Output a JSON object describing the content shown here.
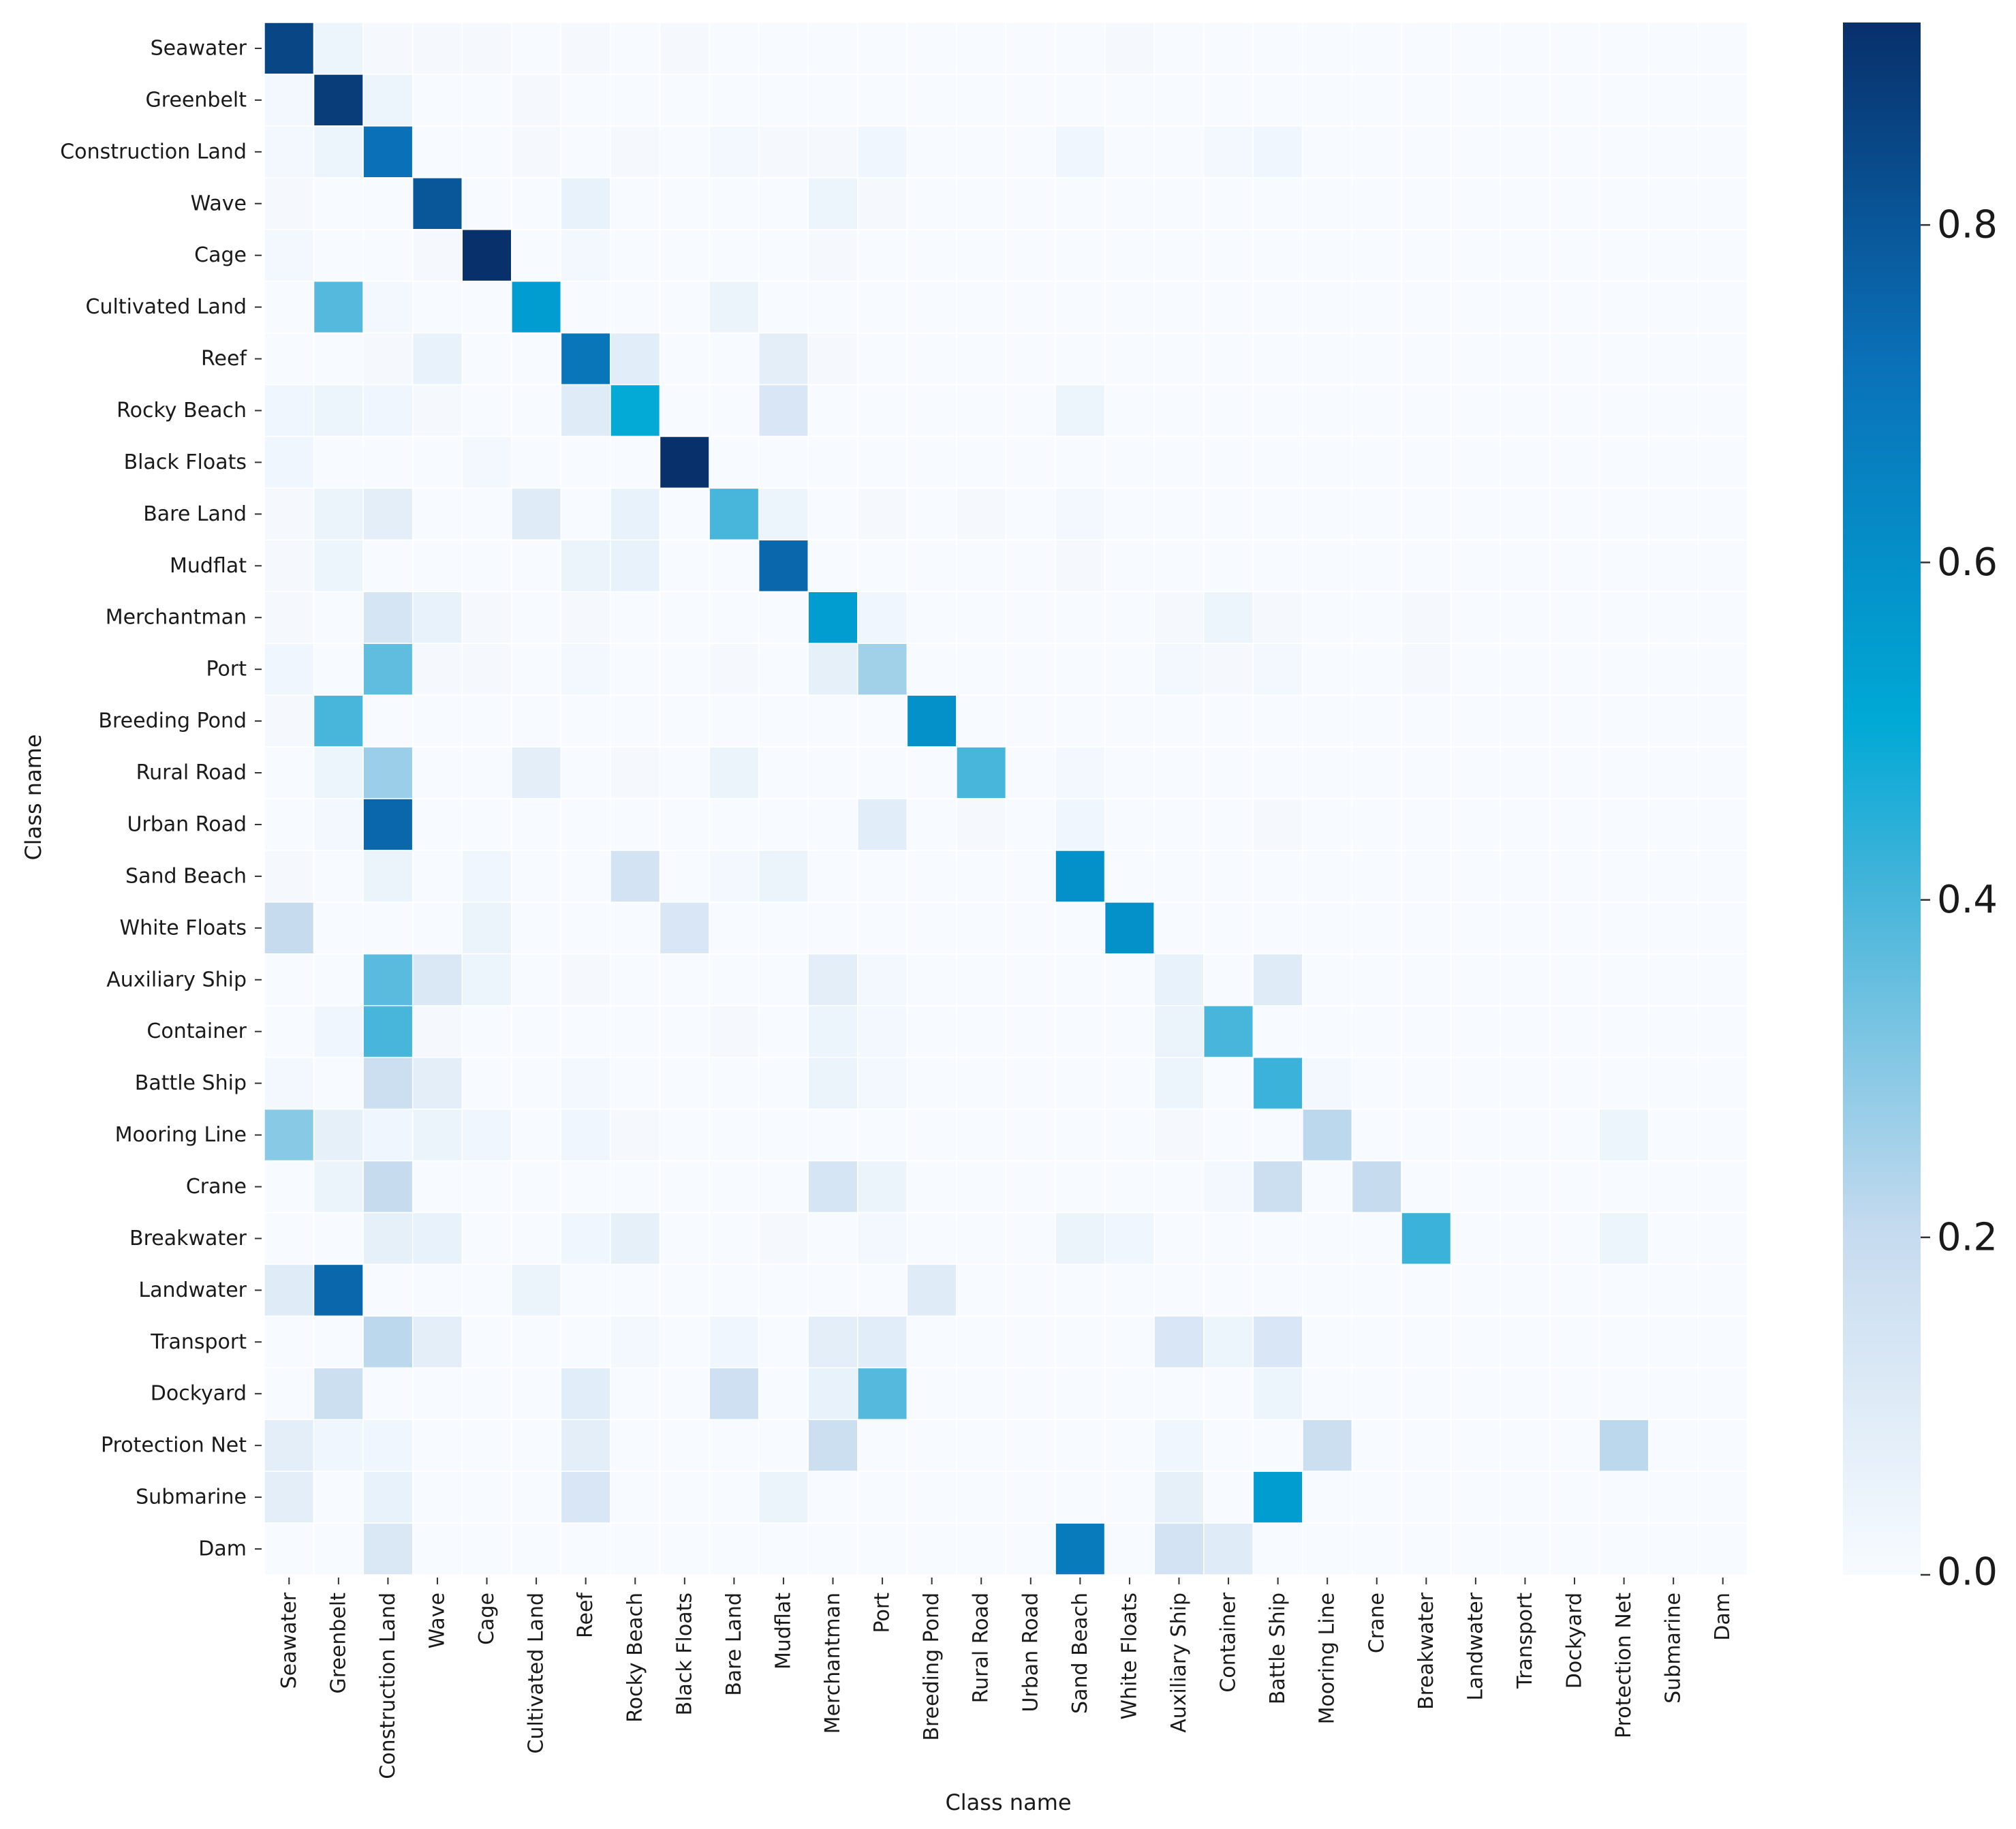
{
  "chart_data": {
    "type": "heatmap",
    "title": "",
    "xlabel": "Class name",
    "ylabel": "Class name",
    "row_labels": [
      "Seawater",
      "Greenbelt",
      "Construction Land",
      "Wave",
      "Cage",
      "Cultivated Land",
      "Reef",
      "Rocky Beach",
      "Black Floats",
      "Bare Land",
      "Mudflat",
      "Merchantman",
      "Port",
      "Breeding Pond",
      "Rural Road",
      "Urban Road",
      "Sand Beach",
      "White Floats",
      "Auxiliary Ship",
      "Container",
      "Battle Ship",
      "Mooring Line",
      "Crane",
      "Breakwater",
      "Landwater",
      "Transport",
      "Dockyard",
      "Protection Net",
      "Submarine",
      "Dam"
    ],
    "col_labels": [
      "Seawater",
      "Greenbelt",
      "Construction Land",
      "Wave",
      "Cage",
      "Cultivated Land",
      "Reef",
      "Rocky Beach",
      "Black Floats",
      "Bare Land",
      "Mudflat",
      "Merchantman",
      "Port",
      "Breeding Pond",
      "Rural Road",
      "Urban Road",
      "Sand Beach",
      "White Floats",
      "Auxiliary Ship",
      "Container",
      "Battle Ship",
      "Mooring Line",
      "Crane",
      "Breakwater",
      "Landwater",
      "Transport",
      "Dockyard",
      "Protection Net",
      "Submarine",
      "Dam"
    ],
    "cells": [
      [
        0,
        0,
        0.85
      ],
      [
        0,
        1,
        0.04
      ],
      [
        0,
        2,
        0.01
      ],
      [
        0,
        3,
        0.01
      ],
      [
        0,
        4,
        0.01
      ],
      [
        0,
        6,
        0.01
      ],
      [
        0,
        8,
        0.01
      ],
      [
        0,
        17,
        0.01
      ],
      [
        1,
        0,
        0.02
      ],
      [
        1,
        1,
        0.88
      ],
      [
        1,
        2,
        0.04
      ],
      [
        1,
        5,
        0.01
      ],
      [
        2,
        0,
        0.02
      ],
      [
        2,
        1,
        0.04
      ],
      [
        2,
        2,
        0.72
      ],
      [
        2,
        5,
        0.01
      ],
      [
        2,
        7,
        0.01
      ],
      [
        2,
        9,
        0.02
      ],
      [
        2,
        10,
        0.01
      ],
      [
        2,
        11,
        0.01
      ],
      [
        2,
        12,
        0.03
      ],
      [
        2,
        16,
        0.03
      ],
      [
        2,
        19,
        0.02
      ],
      [
        2,
        20,
        0.03
      ],
      [
        3,
        0,
        0.01
      ],
      [
        3,
        3,
        0.8
      ],
      [
        3,
        6,
        0.06
      ],
      [
        3,
        11,
        0.04
      ],
      [
        3,
        12,
        0.01
      ],
      [
        4,
        0,
        0.02
      ],
      [
        4,
        3,
        0.01
      ],
      [
        4,
        4,
        0.92
      ],
      [
        4,
        6,
        0.02
      ],
      [
        4,
        11,
        0.01
      ],
      [
        5,
        1,
        0.38
      ],
      [
        5,
        2,
        0.02
      ],
      [
        5,
        5,
        0.55
      ],
      [
        5,
        9,
        0.05
      ],
      [
        6,
        2,
        0.01
      ],
      [
        6,
        3,
        0.06
      ],
      [
        6,
        6,
        0.7
      ],
      [
        6,
        7,
        0.09
      ],
      [
        6,
        10,
        0.08
      ],
      [
        6,
        11,
        0.01
      ],
      [
        7,
        0,
        0.03
      ],
      [
        7,
        1,
        0.04
      ],
      [
        7,
        2,
        0.03
      ],
      [
        7,
        3,
        0.01
      ],
      [
        7,
        6,
        0.1
      ],
      [
        7,
        7,
        0.5
      ],
      [
        7,
        10,
        0.13
      ],
      [
        7,
        16,
        0.04
      ],
      [
        8,
        0,
        0.03
      ],
      [
        8,
        4,
        0.02
      ],
      [
        8,
        8,
        0.92
      ],
      [
        9,
        0,
        0.01
      ],
      [
        9,
        1,
        0.05
      ],
      [
        9,
        2,
        0.08
      ],
      [
        9,
        5,
        0.1
      ],
      [
        9,
        7,
        0.06
      ],
      [
        9,
        9,
        0.4
      ],
      [
        9,
        10,
        0.04
      ],
      [
        9,
        12,
        0.01
      ],
      [
        9,
        14,
        0.01
      ],
      [
        9,
        16,
        0.02
      ],
      [
        10,
        0,
        0.01
      ],
      [
        10,
        1,
        0.04
      ],
      [
        10,
        6,
        0.05
      ],
      [
        10,
        7,
        0.06
      ],
      [
        10,
        10,
        0.75
      ],
      [
        10,
        16,
        0.01
      ],
      [
        11,
        0,
        0.01
      ],
      [
        11,
        2,
        0.14
      ],
      [
        11,
        3,
        0.06
      ],
      [
        11,
        4,
        0.01
      ],
      [
        11,
        6,
        0.01
      ],
      [
        11,
        11,
        0.55
      ],
      [
        11,
        12,
        0.03
      ],
      [
        11,
        18,
        0.01
      ],
      [
        11,
        19,
        0.04
      ],
      [
        11,
        20,
        0.01
      ],
      [
        11,
        23,
        0.01
      ],
      [
        12,
        0,
        0.03
      ],
      [
        12,
        2,
        0.36
      ],
      [
        12,
        3,
        0.01
      ],
      [
        12,
        4,
        0.01
      ],
      [
        12,
        6,
        0.02
      ],
      [
        12,
        9,
        0.01
      ],
      [
        12,
        11,
        0.07
      ],
      [
        12,
        12,
        0.26
      ],
      [
        12,
        18,
        0.02
      ],
      [
        12,
        19,
        0.01
      ],
      [
        12,
        20,
        0.02
      ],
      [
        12,
        23,
        0.01
      ],
      [
        13,
        0,
        0.01
      ],
      [
        13,
        1,
        0.4
      ],
      [
        13,
        13,
        0.6
      ],
      [
        14,
        1,
        0.04
      ],
      [
        14,
        2,
        0.27
      ],
      [
        14,
        5,
        0.08
      ],
      [
        14,
        7,
        0.01
      ],
      [
        14,
        9,
        0.05
      ],
      [
        14,
        14,
        0.4
      ],
      [
        14,
        16,
        0.02
      ],
      [
        15,
        1,
        0.02
      ],
      [
        15,
        2,
        0.75
      ],
      [
        15,
        12,
        0.09
      ],
      [
        15,
        14,
        0.01
      ],
      [
        15,
        16,
        0.03
      ],
      [
        15,
        20,
        0.01
      ],
      [
        16,
        0,
        0.01
      ],
      [
        16,
        2,
        0.05
      ],
      [
        16,
        4,
        0.03
      ],
      [
        16,
        7,
        0.15
      ],
      [
        16,
        9,
        0.02
      ],
      [
        16,
        10,
        0.05
      ],
      [
        16,
        16,
        0.6
      ],
      [
        17,
        0,
        0.2
      ],
      [
        17,
        4,
        0.05
      ],
      [
        17,
        8,
        0.13
      ],
      [
        17,
        17,
        0.6
      ],
      [
        18,
        2,
        0.37
      ],
      [
        18,
        3,
        0.12
      ],
      [
        18,
        4,
        0.04
      ],
      [
        18,
        6,
        0.01
      ],
      [
        18,
        11,
        0.08
      ],
      [
        18,
        12,
        0.02
      ],
      [
        18,
        18,
        0.06
      ],
      [
        18,
        20,
        0.1
      ],
      [
        19,
        1,
        0.03
      ],
      [
        19,
        2,
        0.4
      ],
      [
        19,
        3,
        0.01
      ],
      [
        19,
        9,
        0.01
      ],
      [
        19,
        11,
        0.04
      ],
      [
        19,
        12,
        0.02
      ],
      [
        19,
        18,
        0.05
      ],
      [
        19,
        19,
        0.4
      ],
      [
        20,
        0,
        0.02
      ],
      [
        20,
        2,
        0.18
      ],
      [
        20,
        3,
        0.08
      ],
      [
        20,
        6,
        0.02
      ],
      [
        20,
        11,
        0.05
      ],
      [
        20,
        12,
        0.02
      ],
      [
        20,
        18,
        0.04
      ],
      [
        20,
        20,
        0.42
      ],
      [
        20,
        21,
        0.02
      ],
      [
        21,
        0,
        0.3
      ],
      [
        21,
        1,
        0.07
      ],
      [
        21,
        2,
        0.03
      ],
      [
        21,
        3,
        0.05
      ],
      [
        21,
        4,
        0.03
      ],
      [
        21,
        6,
        0.03
      ],
      [
        21,
        7,
        0.01
      ],
      [
        21,
        18,
        0.01
      ],
      [
        21,
        21,
        0.22
      ],
      [
        21,
        27,
        0.04
      ],
      [
        22,
        1,
        0.05
      ],
      [
        22,
        2,
        0.2
      ],
      [
        22,
        11,
        0.14
      ],
      [
        22,
        12,
        0.05
      ],
      [
        22,
        19,
        0.02
      ],
      [
        22,
        20,
        0.18
      ],
      [
        22,
        22,
        0.2
      ],
      [
        23,
        2,
        0.07
      ],
      [
        23,
        3,
        0.06
      ],
      [
        23,
        6,
        0.03
      ],
      [
        23,
        7,
        0.07
      ],
      [
        23,
        10,
        0.01
      ],
      [
        23,
        12,
        0.02
      ],
      [
        23,
        16,
        0.05
      ],
      [
        23,
        17,
        0.03
      ],
      [
        23,
        23,
        0.42
      ],
      [
        23,
        27,
        0.04
      ],
      [
        24,
        0,
        0.1
      ],
      [
        24,
        1,
        0.75
      ],
      [
        24,
        5,
        0.05
      ],
      [
        24,
        13,
        0.1
      ],
      [
        25,
        2,
        0.22
      ],
      [
        25,
        3,
        0.08
      ],
      [
        25,
        7,
        0.02
      ],
      [
        25,
        9,
        0.03
      ],
      [
        25,
        11,
        0.08
      ],
      [
        25,
        12,
        0.09
      ],
      [
        25,
        18,
        0.13
      ],
      [
        25,
        19,
        0.04
      ],
      [
        25,
        20,
        0.13
      ],
      [
        26,
        1,
        0.18
      ],
      [
        26,
        6,
        0.09
      ],
      [
        26,
        9,
        0.17
      ],
      [
        26,
        11,
        0.06
      ],
      [
        26,
        12,
        0.38
      ],
      [
        26,
        20,
        0.04
      ],
      [
        27,
        0,
        0.08
      ],
      [
        27,
        1,
        0.03
      ],
      [
        27,
        2,
        0.03
      ],
      [
        27,
        6,
        0.08
      ],
      [
        27,
        11,
        0.18
      ],
      [
        27,
        18,
        0.03
      ],
      [
        27,
        21,
        0.18
      ],
      [
        27,
        27,
        0.22
      ],
      [
        28,
        0,
        0.08
      ],
      [
        28,
        2,
        0.06
      ],
      [
        28,
        6,
        0.13
      ],
      [
        28,
        10,
        0.05
      ],
      [
        28,
        18,
        0.07
      ],
      [
        28,
        20,
        0.55
      ],
      [
        29,
        2,
        0.12
      ],
      [
        29,
        16,
        0.68
      ],
      [
        29,
        18,
        0.15
      ],
      [
        29,
        19,
        0.1
      ]
    ],
    "vmin": 0,
    "vmax": 0.92,
    "colorbar": {
      "ticks": [
        0.0,
        0.2,
        0.4,
        0.6,
        0.8
      ],
      "tick_labels": [
        "0.0",
        "0.2",
        "0.4",
        "0.6",
        "0.8"
      ]
    },
    "colormap_stops": [
      "#f7fbff",
      "#c6dbef",
      "#3fb3d9",
      "#00a9d6",
      "#0a71b8",
      "#08306b"
    ]
  }
}
